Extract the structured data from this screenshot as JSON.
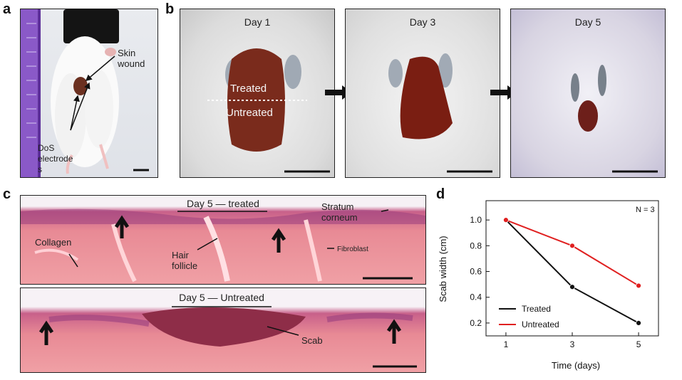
{
  "panels": {
    "a": {
      "letter": "a",
      "labels": {
        "skin_wound": "Skin\nwound",
        "electrodes": "DoS\nelectrode\ns"
      }
    },
    "b": {
      "letter": "b",
      "days": [
        "Day 1",
        "Day 3",
        "Day 5"
      ],
      "treated": "Treated",
      "untreated": "Untreated"
    },
    "c": {
      "letter": "c",
      "top_title": "Day 5 — treated",
      "bottom_title": "Day 5 — Untreated",
      "labels": {
        "stratum": "Stratum\ncorneum",
        "collagen": "Collagen",
        "hair": "Hair\nfollicle",
        "fibroblast": "Fibroblast",
        "scab": "Scab"
      }
    },
    "d": {
      "letter": "d",
      "n_label": "N = 3"
    }
  },
  "chart_data": {
    "type": "line",
    "x": [
      1,
      3,
      5
    ],
    "series": [
      {
        "name": "Treated",
        "values": [
          1.0,
          0.48,
          0.2
        ],
        "color": "#111111"
      },
      {
        "name": "Untreated",
        "values": [
          1.0,
          0.8,
          0.49
        ],
        "color": "#e02020"
      }
    ],
    "xlabel": "Time (days)",
    "ylabel": "Scab width (cm)",
    "xticks": [
      1,
      3,
      5
    ],
    "yticks": [
      0.2,
      0.4,
      0.6,
      0.8,
      1.0
    ],
    "ytick_labels": [
      "0.2",
      "0.4",
      "0.6",
      "0.8",
      "1.0"
    ],
    "xlim": [
      0.4,
      5.6
    ],
    "ylim": [
      0.1,
      1.15
    ],
    "legend_position": "bottom-left",
    "grid": false
  }
}
